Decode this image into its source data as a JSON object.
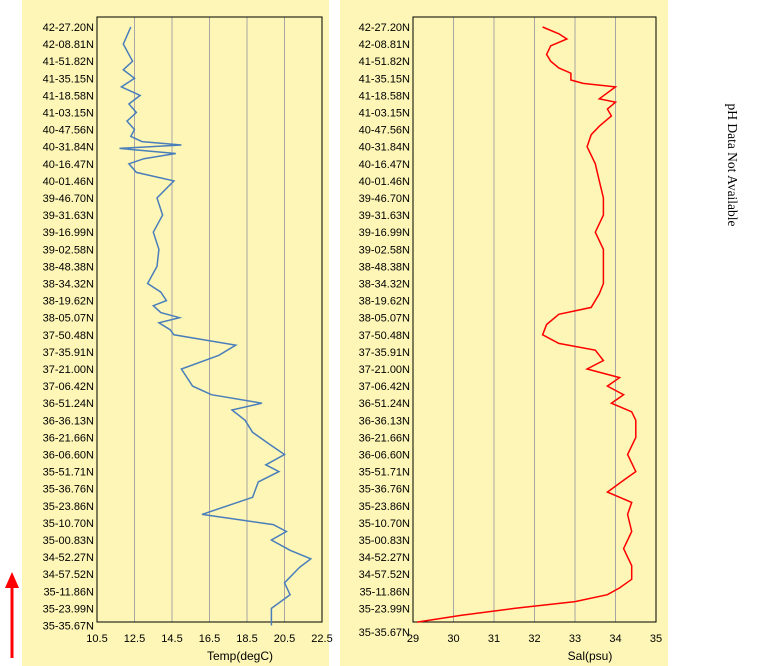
{
  "note": "pH Data Not Available",
  "colors": {
    "panel_bg": "#fdf6b6",
    "temp_line": "#4a7ebb",
    "sal_line": "#ff0000",
    "arrow": "#ff0000",
    "grid": "#a6a6a6"
  },
  "chart_data": [
    {
      "type": "line",
      "xlabel": "Temp(degC)",
      "xlim": [
        10.5,
        22.5
      ],
      "xticks": [
        "10.5",
        "12.5",
        "14.5",
        "16.5",
        "18.5",
        "20.5",
        "22.5"
      ],
      "yticks": [
        "42-27.20N",
        "42-08.81N",
        "41-51.82N",
        "41-35.15N",
        "41-18.58N",
        "41-03.15N",
        "40-47.56N",
        "40-31.84N",
        "40-16.47N",
        "40-01.46N",
        "39-46.70N",
        "39-31.63N",
        "39-16.99N",
        "39-02.58N",
        "38-48.38N",
        "38-34.32N",
        "38-19.62N",
        "38-05.07N",
        "37-50.48N",
        "37-35.91N",
        "37-21.00N",
        "37-06.42N",
        "36-51.24N",
        "36-36.13N",
        "36-21.66N",
        "36-06.60N",
        "35-51.71N",
        "35-36.76N",
        "35-23.86N",
        "35-10.70N",
        "35-00.83N",
        "34-52.27N",
        "34-57.52N",
        "35-11.86N",
        "35-23.99N",
        "35-35.67N"
      ],
      "x": [
        12.3,
        11.9,
        12.4,
        11.9,
        12.5,
        11.8,
        12.8,
        12.2,
        12.6,
        12.1,
        12.5,
        12.3,
        12.9,
        15.0,
        11.7,
        14.7,
        13.0,
        12.2,
        12.6,
        14.6,
        13.7,
        14.0,
        13.5,
        13.8,
        13.7,
        13.2,
        13.9,
        14.2,
        13.5,
        13.9,
        14.9,
        13.8,
        14.4,
        14.6,
        17.9,
        17.0,
        15.0,
        15.6,
        16.6,
        19.3,
        17.7,
        18.4,
        18.8,
        19.7,
        20.5,
        19.5,
        20.2,
        19.1,
        18.8,
        16.1,
        19.9,
        20.6,
        19.8,
        20.8,
        21.9,
        21.3,
        20.5,
        20.8,
        19.8,
        19.8
      ],
      "y": [
        0,
        1,
        2,
        2.5,
        3,
        3.5,
        4,
        4.5,
        5,
        5.5,
        6,
        6.4,
        6.7,
        6.9,
        7.1,
        7.4,
        7.7,
        8,
        8.5,
        9,
        10,
        11,
        12,
        13,
        14,
        15,
        15.5,
        16,
        16.3,
        16.7,
        17,
        17.3,
        17.7,
        18,
        18.6,
        19.2,
        20,
        21,
        21.5,
        22,
        22.4,
        23,
        23.7,
        24.4,
        25,
        25.6,
        26,
        26.6,
        27.5,
        28.5,
        29.1,
        29.5,
        30,
        30.6,
        31.1,
        31.6,
        32.5,
        33.2,
        34,
        35
      ]
    },
    {
      "type": "line",
      "xlabel": "Sal(psu)",
      "xlim": [
        29,
        35
      ],
      "xticks": [
        "29",
        "30",
        "31",
        "32",
        "33",
        "34",
        "35"
      ],
      "yticks": [
        "42-27.20N",
        "42-08.81N",
        "41-51.82N",
        "41-35.15N",
        "41-18.58N",
        "41-03.15N",
        "40-47.56N",
        "40-31.84N",
        "40-16.47N",
        "40-01.46N",
        "39-46.70N",
        "39-31.63N",
        "39-16.99N",
        "39-02.58N",
        "38-48.38N",
        "38-34.32N",
        "38-19.62N",
        "38-05.07N",
        "37-50.48N",
        "37-35.91N",
        "37-21.00N",
        "37-06.42N",
        "36-51.24N",
        "36-36.13N",
        "36-21.66N",
        "36-06.60N",
        "35-51.71N",
        "35-36.76N",
        "35-23.86N",
        "35-10.70N",
        "35-00.83N",
        "34-52.27N",
        "34-57.52N",
        "35-11.86N",
        "35-23.99N",
        "35-35.67N"
      ],
      "x": [
        32.2,
        32.6,
        32.8,
        32.4,
        32.3,
        32.4,
        32.6,
        32.9,
        32.9,
        33.2,
        34.0,
        33.6,
        34.0,
        33.8,
        33.9,
        33.6,
        33.4,
        33.3,
        33.5,
        33.6,
        33.7,
        33.7,
        33.5,
        33.7,
        33.7,
        33.7,
        33.6,
        33.4,
        32.6,
        32.3,
        32.2,
        32.6,
        33.5,
        33.7,
        33.3,
        34.1,
        33.8,
        34.2,
        33.9,
        34.4,
        34.5,
        34.5,
        34.3,
        34.5,
        34.2,
        33.8,
        34.4,
        34.3,
        34.4,
        34.2,
        34.4,
        34.4,
        34.1,
        33.8,
        33.0,
        31.5,
        30.2,
        29.1
      ],
      "y": [
        0,
        0.4,
        0.7,
        1.1,
        1.6,
        2.0,
        2.4,
        2.7,
        3.1,
        3.3,
        3.5,
        4.2,
        4.4,
        4.8,
        5.2,
        5.8,
        6.3,
        7,
        8,
        9,
        10,
        11,
        12,
        13,
        14,
        15,
        15.6,
        16.4,
        16.8,
        17.4,
        18,
        18.5,
        18.9,
        19.5,
        20,
        20.5,
        21,
        21.5,
        22,
        22.5,
        23,
        24,
        25,
        26,
        26.5,
        27.2,
        27.8,
        28.5,
        29.5,
        30.5,
        31.5,
        32.3,
        32.8,
        33.2,
        33.6,
        34.0,
        34.4,
        34.8
      ]
    }
  ]
}
